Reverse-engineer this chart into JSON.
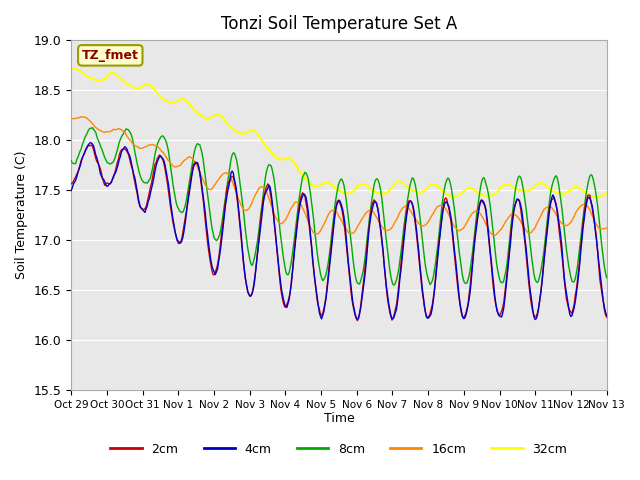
{
  "title": "Tonzi Soil Temperature Set A",
  "xlabel": "Time",
  "ylabel": "Soil Temperature (C)",
  "ylim": [
    15.5,
    19.0
  ],
  "colors": {
    "2cm": "#cc0000",
    "4cm": "#0000cc",
    "8cm": "#00aa00",
    "16cm": "#ff8800",
    "32cm": "#ffff00"
  },
  "legend_label": "TZ_fmet",
  "x_tick_labels": [
    "Oct 29",
    "Oct 30",
    "Oct 31",
    "Nov 1",
    "Nov 2",
    "Nov 3",
    "Nov 4",
    "Nov 5",
    "Nov 6",
    "Nov 7",
    "Nov 8",
    "Nov 9",
    "Nov 10",
    "Nov 11",
    "Nov 12",
    "Nov 13"
  ],
  "n_points": 480,
  "background_color": "#e8e8e8"
}
